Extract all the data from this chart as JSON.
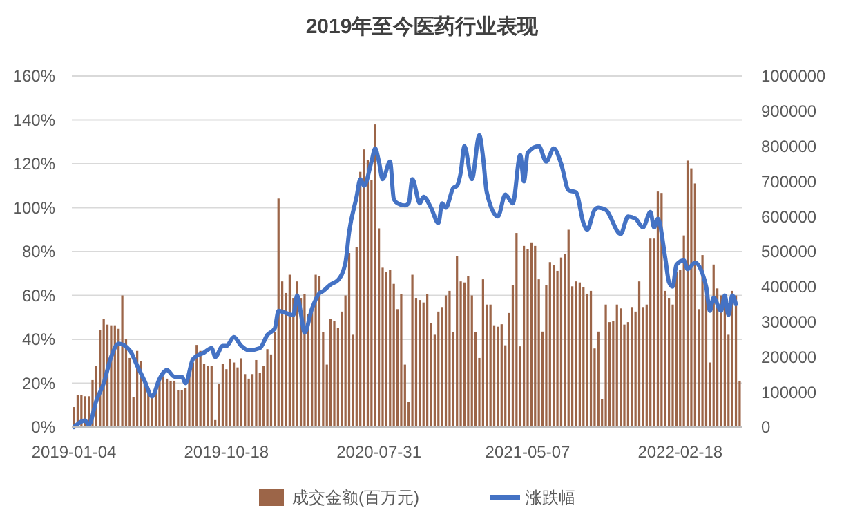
{
  "chart_data": {
    "type": "bar",
    "title": "2019年至今医药行业表现",
    "x": [
      "2019-01-04",
      "2019-01-11",
      "2019-01-18",
      "2019-01-25",
      "2019-02-01",
      "2019-02-08",
      "2019-02-15",
      "2019-02-22",
      "2019-03-01",
      "2019-03-08",
      "2019-03-15",
      "2019-03-22",
      "2019-03-29",
      "2019-04-05",
      "2019-04-12",
      "2019-04-19",
      "2019-04-26",
      "2019-05-03",
      "2019-05-10",
      "2019-05-17",
      "2019-05-24",
      "2019-05-31",
      "2019-06-07",
      "2019-06-14",
      "2019-06-21",
      "2019-06-28",
      "2019-07-05",
      "2019-07-12",
      "2019-07-19",
      "2019-07-26",
      "2019-08-02",
      "2019-08-09",
      "2019-08-16",
      "2019-08-23",
      "2019-08-30",
      "2019-09-06",
      "2019-09-13",
      "2019-09-20",
      "2019-09-27",
      "2019-10-04",
      "2019-10-11",
      "2019-10-18",
      "2019-10-25",
      "2019-11-01",
      "2019-11-08",
      "2019-11-15",
      "2019-11-22",
      "2019-11-29",
      "2019-12-06",
      "2019-12-13",
      "2019-12-20",
      "2019-12-27",
      "2020-01-03",
      "2020-01-10",
      "2020-01-17",
      "2020-01-24",
      "2020-01-31",
      "2020-02-07",
      "2020-02-14",
      "2020-02-21",
      "2020-02-28",
      "2020-03-06",
      "2020-03-13",
      "2020-03-20",
      "2020-03-27",
      "2020-04-03",
      "2020-04-10",
      "2020-04-17",
      "2020-04-24",
      "2020-05-01",
      "2020-05-08",
      "2020-05-15",
      "2020-05-22",
      "2020-05-29",
      "2020-06-05",
      "2020-06-12",
      "2020-06-19",
      "2020-06-26",
      "2020-07-03",
      "2020-07-10",
      "2020-07-17",
      "2020-07-24",
      "2020-07-31",
      "2020-08-07",
      "2020-08-14",
      "2020-08-21",
      "2020-08-28",
      "2020-09-04",
      "2020-09-11",
      "2020-09-18",
      "2020-09-25",
      "2020-10-02",
      "2020-10-09",
      "2020-10-16",
      "2020-10-23",
      "2020-10-30",
      "2020-11-06",
      "2020-11-13",
      "2020-11-20",
      "2020-11-27",
      "2020-12-04",
      "2020-12-11",
      "2020-12-18",
      "2020-12-25",
      "2021-01-01",
      "2021-01-08",
      "2021-01-15",
      "2021-01-22",
      "2021-01-29",
      "2021-02-05",
      "2021-02-12",
      "2021-02-19",
      "2021-02-26",
      "2021-03-05",
      "2021-03-12",
      "2021-03-19",
      "2021-03-26",
      "2021-04-02",
      "2021-04-09",
      "2021-04-16",
      "2021-04-23",
      "2021-04-30",
      "2021-05-07",
      "2021-05-14",
      "2021-05-21",
      "2021-05-28",
      "2021-06-04",
      "2021-06-11",
      "2021-06-18",
      "2021-06-25",
      "2021-07-02",
      "2021-07-09",
      "2021-07-16",
      "2021-07-23",
      "2021-07-30",
      "2021-08-06",
      "2021-08-13",
      "2021-08-20",
      "2021-08-27",
      "2021-09-03",
      "2021-09-10",
      "2021-09-17",
      "2021-09-24",
      "2021-10-01",
      "2021-10-08",
      "2021-10-15",
      "2021-10-22",
      "2021-10-29",
      "2021-11-05",
      "2021-11-12",
      "2021-11-19",
      "2021-11-26",
      "2021-12-03",
      "2021-12-10",
      "2021-12-17",
      "2021-12-24",
      "2021-12-31",
      "2022-01-07",
      "2022-01-14",
      "2022-01-21",
      "2022-01-28",
      "2022-02-04",
      "2022-02-11",
      "2022-02-18",
      "2022-02-25",
      "2022-03-04",
      "2022-03-11",
      "2022-03-18",
      "2022-03-25",
      "2022-04-01",
      "2022-04-08",
      "2022-04-15",
      "2022-04-22",
      "2022-04-29",
      "2022-05-06",
      "2022-05-13",
      "2022-05-20",
      "2022-05-27",
      "2022-06-03",
      "2022-06-10"
    ],
    "series": [
      {
        "name": "成交金额(百万元)",
        "axis": "y2",
        "color": "#9c6548",
        "values": [
          57000,
          92000,
          92000,
          88000,
          88000,
          134000,
          174000,
          276000,
          309000,
          292000,
          290000,
          290000,
          280000,
          375000,
          250000,
          197000,
          86000,
          217000,
          187000,
          138000,
          112000,
          86000,
          112000,
          138000,
          145000,
          138000,
          132000,
          132000,
          105000,
          105000,
          112000,
          151000,
          184000,
          234000,
          217000,
          180000,
          175000,
          175000,
          20000,
          122000,
          180000,
          165000,
          195000,
          184000,
          170000,
          196000,
          151000,
          138000,
          151000,
          191000,
          154000,
          175000,
          222000,
          207000,
          270000,
          651000,
          415000,
          382000,
          434000,
          368000,
          415000,
          368000,
          379000,
          322000,
          342000,
          434000,
          430000,
          270000,
          178000,
          309000,
          303000,
          283000,
          329000,
          375000,
          496000,
          263000,
          513000,
          727000,
          791000,
          760000,
          704000,
          862000,
          566000,
          454000,
          441000,
          447000,
          408000,
          336000,
          378000,
          178000,
          72000,
          434000,
          368000,
          362000,
          355000,
          379000,
          296000,
          263000,
          329000,
          342000,
          375000,
          388000,
          270000,
          487000,
          415000,
          412000,
          430000,
          375000,
          270000,
          197000,
          421000,
          349000,
          349000,
          290000,
          286000,
          293000,
          233000,
          325000,
          404000,
          553000,
          230000,
          516000,
          507000,
          526000,
          516000,
          421000,
          272000,
          404000,
          470000,
          461000,
          445000,
          483000,
          494000,
          562000,
          401000,
          415000,
          412000,
          399000,
          380000,
          388000,
          224000,
          272000,
          79000,
          349000,
          299000,
          303000,
          349000,
          338000,
          292000,
          299000,
          342000,
          329000,
          415000,
          342000,
          349000,
          537000,
          537000,
          671000,
          667000,
          388000,
          368000,
          349000,
          443000,
          447000,
          546000,
          759000,
          737000,
          694000,
          336000,
          490000,
          375000,
          184000,
          463000,
          395000,
          375000,
          355000,
          263000,
          388000,
          375000,
          132000
        ]
      },
      {
        "name": "涨跌幅",
        "type": "line",
        "axis": "y",
        "color": "#4472c4",
        "x": [
          "2019-01-04",
          "2019-01-25",
          "2019-02-01",
          "2019-02-15",
          "2019-03-01",
          "2019-03-15",
          "2019-03-29",
          "2019-04-19",
          "2019-05-03",
          "2019-05-17",
          "2019-05-31",
          "2019-06-14",
          "2019-06-28",
          "2019-07-12",
          "2019-07-26",
          "2019-08-02",
          "2019-08-16",
          "2019-09-06",
          "2019-09-20",
          "2019-09-27",
          "2019-10-11",
          "2019-10-18",
          "2019-11-01",
          "2019-11-15",
          "2019-11-29",
          "2019-12-20",
          "2020-01-03",
          "2020-01-17",
          "2020-01-24",
          "2020-02-07",
          "2020-02-21",
          "2020-02-28",
          "2020-03-06",
          "2020-03-13",
          "2020-03-27",
          "2020-04-10",
          "2020-04-17",
          "2020-05-01",
          "2020-05-15",
          "2020-05-29",
          "2020-06-05",
          "2020-06-19",
          "2020-06-26",
          "2020-07-03",
          "2020-07-17",
          "2020-07-24",
          "2020-07-31",
          "2020-08-07",
          "2020-08-21",
          "2020-08-28",
          "2020-09-04",
          "2020-09-18",
          "2020-09-25",
          "2020-10-02",
          "2020-10-16",
          "2020-10-23",
          "2020-11-06",
          "2020-11-20",
          "2020-11-27",
          "2020-12-04",
          "2020-12-18",
          "2020-12-25",
          "2021-01-01",
          "2021-01-08",
          "2021-01-22",
          "2021-02-05",
          "2021-02-12",
          "2021-02-19",
          "2021-03-12",
          "2021-03-26",
          "2021-04-09",
          "2021-04-23",
          "2021-04-30",
          "2021-05-07",
          "2021-05-28",
          "2021-06-11",
          "2021-06-25",
          "2021-07-09",
          "2021-07-23",
          "2021-08-06",
          "2021-08-20",
          "2021-08-27",
          "2021-09-10",
          "2021-09-17",
          "2021-10-01",
          "2021-10-29",
          "2021-11-12",
          "2021-11-26",
          "2021-12-10",
          "2021-12-24",
          "2021-12-31",
          "2022-01-07",
          "2022-01-21",
          "2022-01-28",
          "2022-02-04",
          "2022-02-11",
          "2022-02-25",
          "2022-03-04",
          "2022-03-18",
          "2022-04-01",
          "2022-04-08",
          "2022-04-15",
          "2022-04-22",
          "2022-05-06",
          "2022-05-13",
          "2022-05-20",
          "2022-05-27",
          "2022-06-03"
        ],
        "values": [
          0,
          3,
          1,
          12,
          20,
          32,
          38,
          35,
          28,
          21,
          14,
          22,
          26,
          23,
          23,
          20,
          31,
          34,
          36,
          32,
          37,
          37,
          41,
          37,
          35,
          36,
          42,
          45,
          53,
          52,
          51,
          60,
          52,
          43,
          54,
          61,
          62,
          65,
          67,
          75,
          89,
          105,
          113,
          110,
          121,
          127,
          121,
          113,
          121,
          104,
          102,
          101,
          102,
          113,
          102,
          105,
          100,
          93,
          102,
          100,
          109,
          110,
          116,
          128,
          113,
          133,
          123,
          107,
          96,
          106,
          102,
          124,
          112,
          125,
          128,
          121,
          127,
          120,
          108,
          107,
          93,
          90,
          99,
          100,
          99,
          88,
          96,
          95,
          91,
          98,
          91,
          95,
          77,
          66,
          64,
          74,
          76,
          72,
          75,
          70,
          64,
          53,
          59,
          53,
          60,
          51,
          60,
          56
        ]
      }
    ],
    "xlim": [
      "2018-12-31",
      "2022-06-14"
    ],
    "xticks": [
      "2019-01-04",
      "2019-10-18",
      "2020-07-31",
      "2021-05-07",
      "2022-02-18"
    ],
    "ylim": [
      0,
      160
    ],
    "yticks": [
      {
        "value": 0,
        "label": "0%"
      },
      {
        "value": 20,
        "label": "20%"
      },
      {
        "value": 40,
        "label": "40%"
      },
      {
        "value": 60,
        "label": "60%"
      },
      {
        "value": 80,
        "label": "80%"
      },
      {
        "value": 100,
        "label": "100%"
      },
      {
        "value": 120,
        "label": "120%"
      },
      {
        "value": 140,
        "label": "140%"
      },
      {
        "value": 160,
        "label": "160%"
      }
    ],
    "y2lim": [
      0,
      1000000
    ],
    "y2ticks": [
      0,
      100000,
      200000,
      300000,
      400000,
      500000,
      600000,
      700000,
      800000,
      900000,
      1000000
    ],
    "grid": "y",
    "legend": "bottom"
  }
}
